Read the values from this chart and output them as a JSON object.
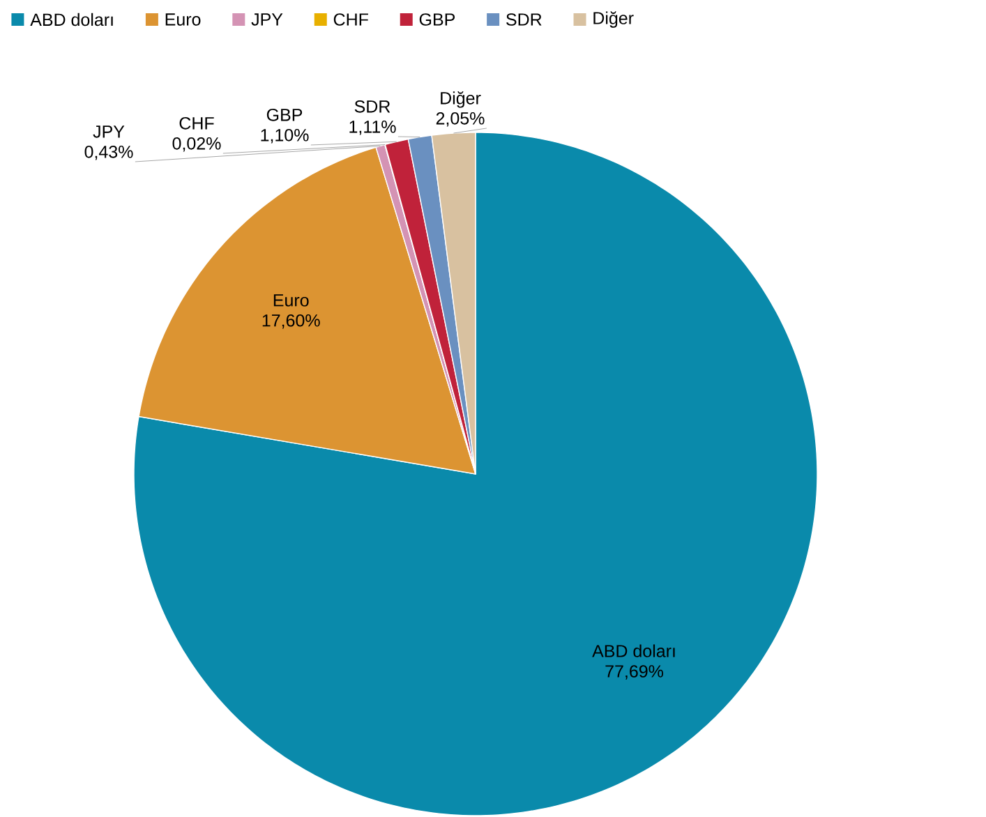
{
  "chart_data": {
    "type": "pie",
    "categories": [
      "ABD doları",
      "Euro",
      "JPY",
      "CHF",
      "GBP",
      "SDR",
      "Diğer"
    ],
    "values": [
      77.69,
      17.6,
      0.43,
      0.02,
      1.1,
      1.11,
      2.05
    ],
    "colors": [
      "#0a8aab",
      "#dc9432",
      "#d493b4",
      "#e8b000",
      "#c0223a",
      "#6a90c0",
      "#d8c1a0"
    ],
    "value_labels": [
      "77,69%",
      "17,60%",
      "0,43%",
      "0,02%",
      "1,10%",
      "1,11%",
      "2,05%"
    ],
    "legend": "top"
  }
}
